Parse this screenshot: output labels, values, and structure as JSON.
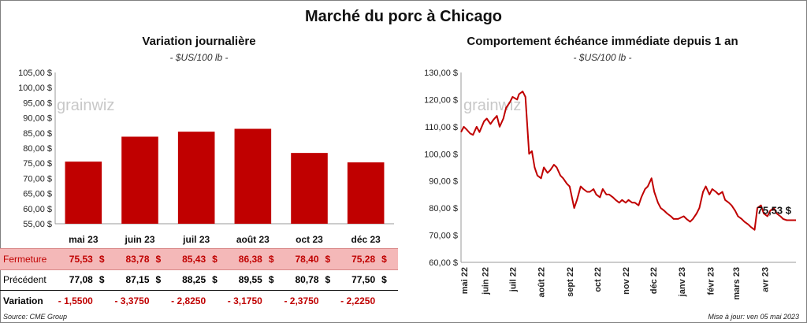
{
  "main_title": "Marché du porc à Chicago",
  "left": {
    "title": "Variation  journalière",
    "subtitle": "- $US/100 lb -"
  },
  "right": {
    "title": "Comportement  échéance immédiate depuis 1 an",
    "subtitle": "- $US/100 lb -",
    "last_label": "75,53 $"
  },
  "watermark": "grainwiz",
  "table": {
    "close_label": "Fermeture",
    "prev_label": "Précédent",
    "var_label": "Variation",
    "currency": "$",
    "close": [
      "75,53",
      "83,78",
      "85,43",
      "86,38",
      "78,40",
      "75,28"
    ],
    "prev": [
      "77,08",
      "87,15",
      "88,25",
      "89,55",
      "80,78",
      "77,50"
    ],
    "variation": [
      "- 1,5500",
      "- 3,3750",
      "- 2,8250",
      "- 3,1750",
      "- 2,3750",
      "- 2,2250"
    ]
  },
  "footer": {
    "source": "Source: CME Group",
    "updated": "Mise à jour: ven 05 mai 2023"
  },
  "colors": {
    "bar": "#c00000",
    "line": "#c00000",
    "close_row_bg": "#f4b8b8"
  },
  "chart_data": [
    {
      "type": "bar",
      "categories": [
        "mai 23",
        "juin 23",
        "juil 23",
        "août 23",
        "oct 23",
        "déc 23"
      ],
      "values": [
        75.53,
        83.78,
        85.43,
        86.38,
        78.4,
        75.28
      ],
      "ylim": [
        55,
        105
      ],
      "yticks": [
        "55,00 $",
        "60,00 $",
        "65,00 $",
        "70,00 $",
        "75,00 $",
        "80,00 $",
        "85,00 $",
        "90,00 $",
        "95,00 $",
        "100,00 $",
        "105,00 $"
      ],
      "grid": false
    },
    {
      "type": "line",
      "ylim": [
        60,
        130
      ],
      "yticks": [
        "60,00 $",
        "70,00 $",
        "80,00 $",
        "90,00 $",
        "100,00 $",
        "110,00 $",
        "120,00 $",
        "130,00 $"
      ],
      "xticks": [
        "mai 22",
        "juin 22",
        "juil 22",
        "août 22",
        "sept 22",
        "oct 22",
        "nov 22",
        "déc 22",
        "janv 23",
        "févr 23",
        "mars 23",
        "avr 23"
      ],
      "x": [
        "2022-05-06",
        "2022-05-09",
        "2022-05-12",
        "2022-05-16",
        "2022-05-19",
        "2022-05-23",
        "2022-05-26",
        "2022-05-31",
        "2022-06-03",
        "2022-06-07",
        "2022-06-10",
        "2022-06-14",
        "2022-06-17",
        "2022-06-21",
        "2022-06-24",
        "2022-06-28",
        "2022-07-01",
        "2022-07-06",
        "2022-07-08",
        "2022-07-12",
        "2022-07-15",
        "2022-07-19",
        "2022-07-22",
        "2022-07-25",
        "2022-07-28",
        "2022-08-01",
        "2022-08-04",
        "2022-08-08",
        "2022-08-11",
        "2022-08-15",
        "2022-08-18",
        "2022-08-22",
        "2022-08-25",
        "2022-08-29",
        "2022-09-01",
        "2022-09-06",
        "2022-09-09",
        "2022-09-13",
        "2022-09-16",
        "2022-09-20",
        "2022-09-23",
        "2022-09-27",
        "2022-09-30",
        "2022-10-04",
        "2022-10-07",
        "2022-10-11",
        "2022-10-14",
        "2022-10-18",
        "2022-10-21",
        "2022-10-25",
        "2022-10-28",
        "2022-11-01",
        "2022-11-04",
        "2022-11-08",
        "2022-11-11",
        "2022-11-15",
        "2022-11-18",
        "2022-11-22",
        "2022-11-25",
        "2022-11-29",
        "2022-12-02",
        "2022-12-06",
        "2022-12-09",
        "2022-12-13",
        "2022-12-16",
        "2022-12-20",
        "2022-12-23",
        "2022-12-28",
        "2023-01-03",
        "2023-01-06",
        "2023-01-10",
        "2023-01-13",
        "2023-01-17",
        "2023-01-20",
        "2023-01-24",
        "2023-01-27",
        "2023-01-31",
        "2023-02-03",
        "2023-02-07",
        "2023-02-10",
        "2023-02-14",
        "2023-02-17",
        "2023-02-21",
        "2023-02-24",
        "2023-02-28",
        "2023-03-03",
        "2023-03-07",
        "2023-03-10",
        "2023-03-14",
        "2023-03-17",
        "2023-03-21",
        "2023-03-24",
        "2023-03-28",
        "2023-03-31",
        "2023-04-04",
        "2023-04-07",
        "2023-04-11",
        "2023-04-14",
        "2023-04-18",
        "2023-04-21",
        "2023-04-25",
        "2023-04-28",
        "2023-05-02",
        "2023-05-05"
      ],
      "y": [
        108.0,
        110.0,
        109.0,
        107.5,
        107.0,
        110.0,
        108.0,
        112.0,
        113.0,
        111.0,
        112.5,
        114.0,
        110.0,
        113.0,
        117.0,
        119.0,
        121.0,
        120.0,
        122.0,
        123.0,
        121.0,
        100.0,
        101.0,
        95.0,
        92.0,
        91.0,
        95.0,
        93.0,
        94.0,
        96.0,
        95.0,
        92.0,
        91.0,
        89.0,
        88.0,
        80.0,
        83.0,
        88.0,
        87.0,
        86.0,
        86.0,
        87.0,
        85.0,
        84.0,
        87.0,
        85.0,
        85.0,
        84.0,
        83.0,
        82.0,
        83.0,
        82.0,
        83.0,
        82.0,
        82.0,
        81.0,
        84.0,
        87.0,
        88.0,
        91.0,
        86.0,
        82.0,
        80.0,
        79.0,
        78.0,
        77.0,
        76.0,
        76.0,
        77.0,
        76.0,
        75.0,
        76.0,
        78.0,
        80.0,
        86.0,
        88.0,
        85.0,
        87.0,
        86.0,
        85.0,
        86.0,
        83.0,
        82.0,
        81.0,
        79.0,
        77.0,
        76.0,
        75.0,
        74.0,
        73.0,
        72.0,
        80.0,
        81.0,
        78.0,
        77.0,
        79.0,
        80.0,
        78.0,
        77.0,
        76.0,
        75.53,
        75.53,
        75.53,
        75.53
      ],
      "last_value": 75.53,
      "grid": false
    }
  ]
}
